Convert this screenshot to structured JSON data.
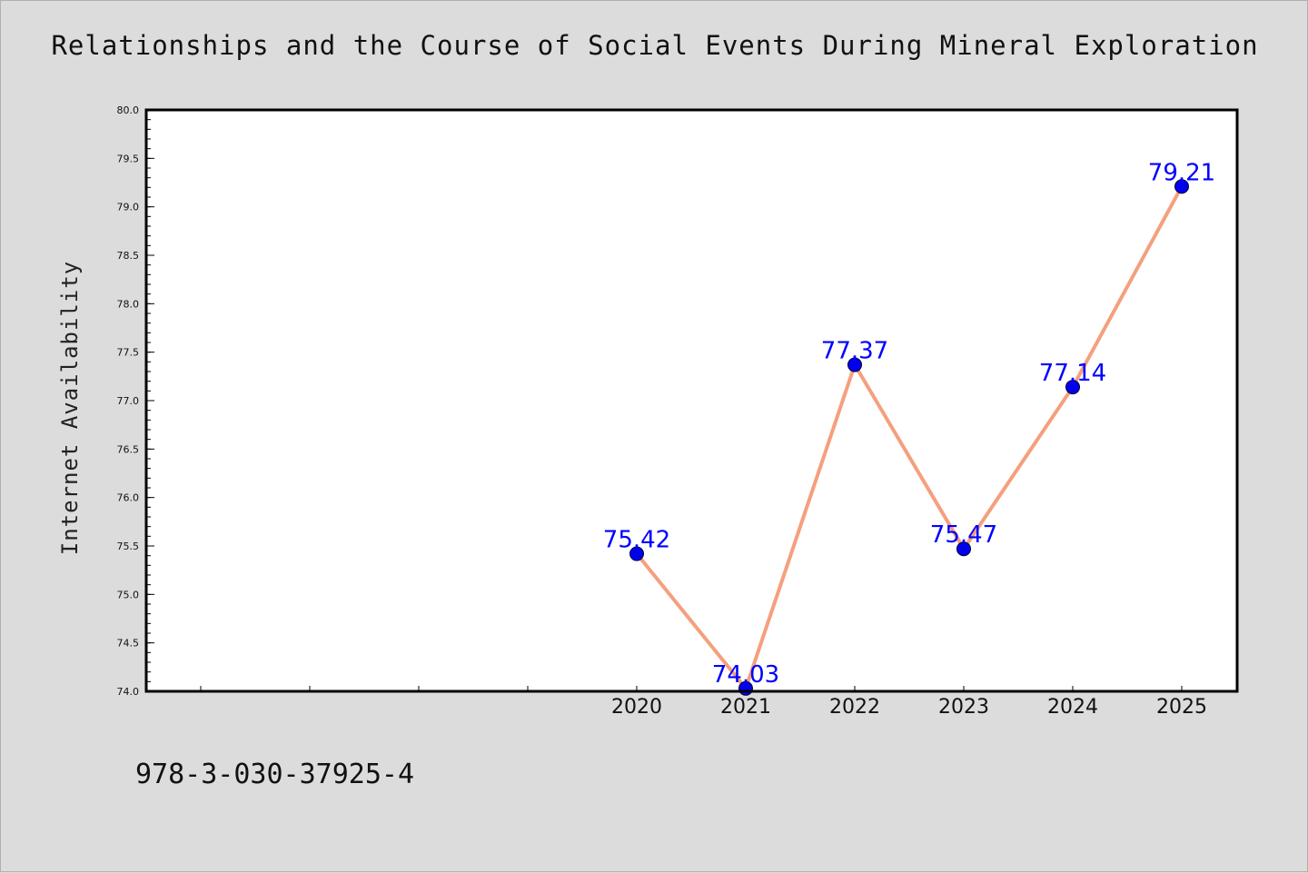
{
  "caption": "978-3-030-37925-4",
  "chart_data": {
    "type": "line",
    "title": "Relationships and the Course of Social Events During Mineral Exploration",
    "xlabel": "",
    "ylabel": "Internet Availability",
    "x": [
      "2020",
      "2021",
      "2022",
      "2023",
      "2024",
      "2025"
    ],
    "series": [
      {
        "values": [
          75.42,
          74.03,
          77.37,
          75.47,
          77.14,
          79.21
        ]
      }
    ],
    "data_labels": [
      "75.42",
      "74.03",
      "77.37",
      "75.47",
      "77.14",
      "79.21"
    ],
    "ylim": [
      74.0,
      80.0
    ],
    "y_ticks": [
      "74.0",
      "74.5",
      "75.0",
      "75.5",
      "76.0",
      "76.5",
      "77.0",
      "77.5",
      "78.0",
      "78.5",
      "79.0",
      "79.5",
      "80.0"
    ],
    "grid": false,
    "legend": "none",
    "colors": {
      "line": "#f4a07e",
      "marker": "#0000ee",
      "label": "#0000ff",
      "background": "#dcdcdc",
      "plot": "#ffffff"
    }
  }
}
